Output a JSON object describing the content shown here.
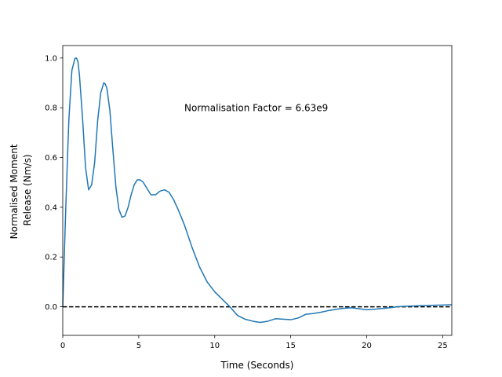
{
  "chart_data": {
    "type": "line",
    "title": "",
    "xlabel": "Time (Seconds)",
    "ylabel_lines": [
      "Normalised Moment",
      "Release (Nm/s)"
    ],
    "xlim": [
      0,
      25.6
    ],
    "ylim": [
      -0.115,
      1.05
    ],
    "x_ticks": [
      0,
      5,
      10,
      15,
      20,
      25
    ],
    "y_ticks": [
      0.0,
      0.2,
      0.4,
      0.6,
      0.8,
      1.0
    ],
    "x_tick_labels": [
      "0",
      "5",
      "10",
      "15",
      "20",
      "25"
    ],
    "y_tick_labels": [
      "0.0",
      "0.2",
      "0.4",
      "0.6",
      "0.8",
      "1.0"
    ],
    "grid": false,
    "annotation": {
      "text": "Normalisation Factor = 6.63e9",
      "x": 8.0,
      "y": 0.8
    },
    "reference_line": {
      "y": 0.0,
      "style": "dashed",
      "color": "#000000"
    },
    "series": [
      {
        "color": "#1f77b4",
        "x": [
          0,
          0.2,
          0.4,
          0.6,
          0.8,
          0.9,
          1.0,
          1.1,
          1.3,
          1.5,
          1.7,
          1.9,
          2.1,
          2.3,
          2.5,
          2.7,
          2.8,
          2.9,
          3.1,
          3.3,
          3.5,
          3.7,
          3.9,
          4.1,
          4.3,
          4.5,
          4.7,
          4.9,
          5.1,
          5.3,
          5.5,
          5.8,
          6.1,
          6.4,
          6.7,
          7.0,
          7.3,
          7.6,
          8.0,
          8.5,
          9.0,
          9.5,
          10.0,
          10.5,
          11.0,
          11.5,
          12.0,
          12.5,
          13.0,
          13.5,
          14.0,
          14.5,
          15.0,
          15.5,
          16.0,
          16.5,
          17.0,
          17.5,
          18.0,
          18.5,
          19.0,
          19.5,
          20.0,
          20.5,
          21.0,
          21.5,
          22.0,
          22.5,
          23.0,
          23.5,
          24.0,
          24.5,
          25.0,
          25.6
        ],
        "y": [
          0.0,
          0.4,
          0.75,
          0.95,
          0.998,
          1.0,
          0.985,
          0.93,
          0.76,
          0.56,
          0.47,
          0.49,
          0.58,
          0.75,
          0.86,
          0.9,
          0.895,
          0.88,
          0.79,
          0.63,
          0.48,
          0.39,
          0.36,
          0.365,
          0.4,
          0.45,
          0.49,
          0.51,
          0.51,
          0.5,
          0.48,
          0.45,
          0.45,
          0.465,
          0.47,
          0.46,
          0.43,
          0.39,
          0.33,
          0.24,
          0.16,
          0.1,
          0.06,
          0.03,
          0.0,
          -0.035,
          -0.05,
          -0.058,
          -0.063,
          -0.058,
          -0.048,
          -0.05,
          -0.052,
          -0.045,
          -0.03,
          -0.027,
          -0.022,
          -0.015,
          -0.01,
          -0.006,
          -0.004,
          -0.008,
          -0.012,
          -0.01,
          -0.007,
          -0.004,
          0.0,
          0.002,
          0.003,
          0.004,
          0.005,
          0.006,
          0.007,
          0.008
        ]
      }
    ]
  }
}
